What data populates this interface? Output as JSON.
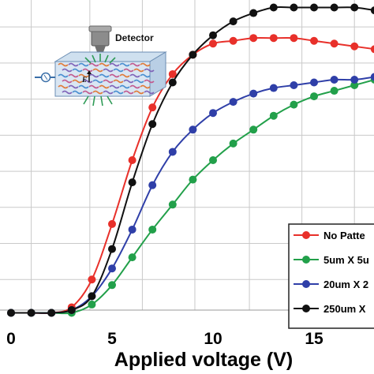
{
  "chart_data": {
    "type": "line",
    "title": "",
    "xlabel": "Applied voltage (V)",
    "ylabel": "",
    "xlim": [
      0,
      18.5
    ],
    "ylim": [
      0,
      1.12
    ],
    "grid": true,
    "legend_position": "bottom-right",
    "x_ticks": [
      "0",
      "5",
      "10",
      "15"
    ],
    "x_tick_values": [
      0,
      5,
      10,
      15
    ],
    "series": [
      {
        "name": "No Patte",
        "color": "#e8302a",
        "x": [
          0,
          1,
          2,
          3,
          4,
          5,
          6,
          7,
          8,
          9,
          10,
          11,
          12,
          13,
          14,
          15,
          16,
          17,
          18
        ],
        "y": [
          0.01,
          0.01,
          0.01,
          0.03,
          0.13,
          0.33,
          0.56,
          0.75,
          0.87,
          0.94,
          0.98,
          0.99,
          1.0,
          1.0,
          1.0,
          0.99,
          0.98,
          0.97,
          0.96
        ]
      },
      {
        "name": "5um X 5u",
        "color": "#22a04a",
        "x": [
          0,
          1,
          2,
          3,
          4,
          5,
          6,
          7,
          8,
          9,
          10,
          11,
          12,
          13,
          14,
          15,
          16,
          17,
          18
        ],
        "y": [
          0.01,
          0.01,
          0.01,
          0.01,
          0.04,
          0.11,
          0.21,
          0.31,
          0.4,
          0.49,
          0.56,
          0.62,
          0.67,
          0.72,
          0.76,
          0.79,
          0.81,
          0.83,
          0.85
        ]
      },
      {
        "name": "20um X 2",
        "color": "#2f3fa8",
        "x": [
          0,
          1,
          2,
          3,
          4,
          5,
          6,
          7,
          8,
          9,
          10,
          11,
          12,
          13,
          14,
          15,
          16,
          17,
          18
        ],
        "y": [
          0.01,
          0.01,
          0.01,
          0.02,
          0.07,
          0.17,
          0.31,
          0.47,
          0.59,
          0.67,
          0.73,
          0.77,
          0.8,
          0.82,
          0.83,
          0.84,
          0.85,
          0.85,
          0.86
        ]
      },
      {
        "name": "250um X",
        "color": "#111111",
        "x": [
          0,
          1,
          2,
          3,
          4,
          5,
          6,
          7,
          8,
          9,
          10,
          11,
          12,
          13,
          14,
          15,
          16,
          17,
          18
        ],
        "y": [
          0.01,
          0.01,
          0.01,
          0.02,
          0.07,
          0.24,
          0.48,
          0.69,
          0.84,
          0.94,
          1.01,
          1.06,
          1.09,
          1.11,
          1.11,
          1.11,
          1.11,
          1.11,
          1.1
        ]
      }
    ]
  },
  "inset": {
    "detector_label": "Detector",
    "field_label": "E"
  },
  "colors": {
    "gridline": "#c9c9c9",
    "axis": "#9a9a9a",
    "legend_border": "#222222"
  }
}
